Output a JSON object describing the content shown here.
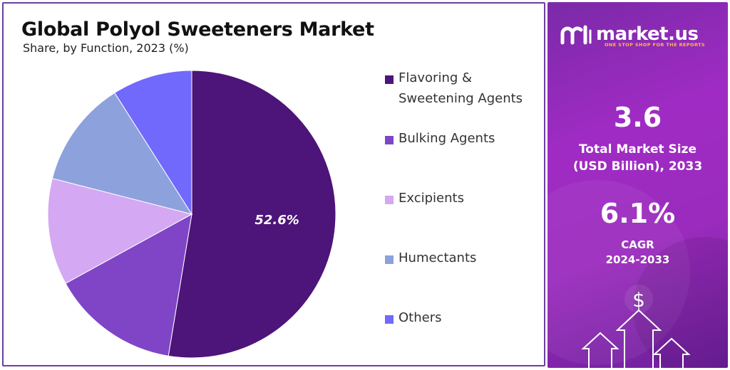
{
  "chart_data": {
    "type": "pie",
    "title": "Global Polyol Sweeteners Market",
    "subtitle": "Share, by Function, 2023 (%)",
    "categories": [
      "Flavoring & Sweetening Agents",
      "Bulking Agents",
      "Excipients",
      "Humectants",
      "Others"
    ],
    "values": [
      52.6,
      14.4,
      12.0,
      12.0,
      9.0
    ],
    "colors": [
      "#4d1479",
      "#7f45c6",
      "#d4a8f2",
      "#8da1dd",
      "#7169fb"
    ],
    "data_labels": [
      "52.6%",
      "",
      "",
      "",
      ""
    ],
    "legend_position": "right"
  },
  "legend": {
    "items": [
      {
        "label": "Flavoring & Sweetening Agents",
        "color": "#4d1479"
      },
      {
        "label": "Bulking Agents",
        "color": "#7f45c6"
      },
      {
        "label": "Excipients",
        "color": "#d4a8f2"
      },
      {
        "label": "Humectants",
        "color": "#8da1dd"
      },
      {
        "label": "Others",
        "color": "#7169fb"
      }
    ]
  },
  "brand": {
    "name": "market.us",
    "tagline": "ONE STOP SHOP FOR THE REPORTS",
    "icon": "market-us-logo-icon",
    "accent": "#ffb84d"
  },
  "stats": {
    "market_size_value": "3.6",
    "market_size_label_line1": "Total Market Size",
    "market_size_label_line2": "(USD Billion), 2033",
    "cagr_value": "6.1%",
    "cagr_label_line1": "CAGR",
    "cagr_label_line2": "2024-2033",
    "dollar_symbol": "$"
  }
}
